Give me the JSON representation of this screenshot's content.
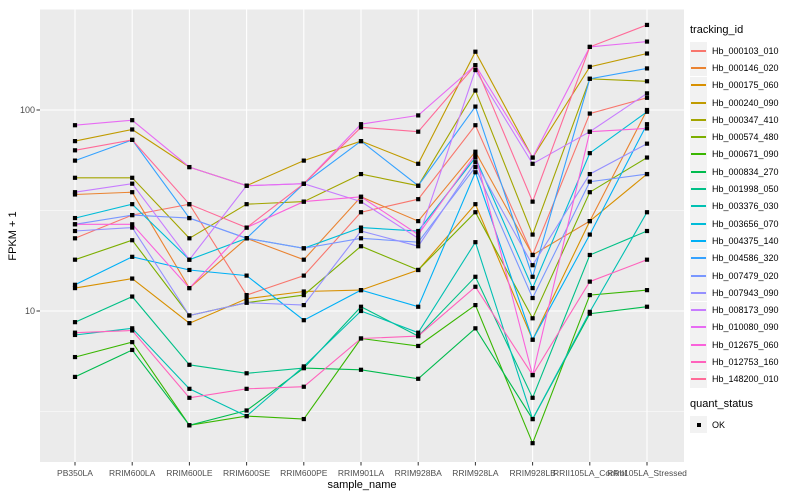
{
  "chart_data": {
    "type": "line",
    "title": "",
    "xlabel": "sample_name",
    "ylabel": "FPKM + 1",
    "y_scale": "log10",
    "y_ticks": [
      10,
      100
    ],
    "y_minor_ticks": [
      3.1623,
      31.623,
      316.23
    ],
    "ylim": [
      1.77,
      315
    ],
    "grid": true,
    "legend_position": "right",
    "legend_title": "tracking_id",
    "legend2_title": "quant_status",
    "quant_status_values": [
      "OK"
    ],
    "panel_bg": "#EBEBEB",
    "grid_color": "#FFFFFF",
    "point_color": "#000000",
    "x_categories": [
      "PB350LA",
      "RRIM600LA",
      "RRIM600LE",
      "RRIM600SE",
      "RRIM600PE",
      "RRIM901LA",
      "RRIM928BA",
      "RRIM928LA",
      "RRIM928LB",
      "RRII105LA_Control",
      "RRII105LA_Stressed"
    ],
    "series": [
      {
        "name": "Hb_000103_010",
        "color": "#F8766D",
        "values": [
          23,
          30,
          34,
          12,
          15,
          31,
          36,
          84,
          19,
          96,
          115
        ]
      },
      {
        "name": "Hb_000146_020",
        "color": "#EA8331",
        "values": [
          38,
          39,
          13,
          23,
          18,
          37,
          28,
          62,
          19,
          28,
          100
        ]
      },
      {
        "name": "Hb_000175_060",
        "color": "#D89000",
        "values": [
          13,
          14.5,
          8.7,
          11.5,
          12.5,
          12.7,
          16,
          34,
          7.2,
          28,
          48
        ]
      },
      {
        "name": "Hb_000240_090",
        "color": "#C09B00",
        "values": [
          70,
          80,
          52,
          42,
          56,
          70,
          54,
          195,
          58,
          164,
          191
        ]
      },
      {
        "name": "Hb_000347_410",
        "color": "#A3A500",
        "values": [
          46,
          46,
          23,
          34,
          35,
          48,
          42,
          125,
          24,
          143,
          139
        ]
      },
      {
        "name": "Hb_000574_480",
        "color": "#7CAE00",
        "values": [
          18,
          22.5,
          9.5,
          11,
          12,
          21,
          16,
          31,
          9.2,
          39,
          58
        ]
      },
      {
        "name": "Hb_000671_090",
        "color": "#39B600",
        "values": [
          5.9,
          7,
          2.7,
          3,
          2.9,
          7.3,
          6.7,
          10.7,
          2.2,
          12,
          12.7
        ]
      },
      {
        "name": "Hb_000834_270",
        "color": "#00BB4E",
        "values": [
          4.7,
          6.4,
          2.7,
          3.2,
          5.2,
          5.1,
          4.6,
          8.2,
          2.9,
          9.7,
          10.5
        ]
      },
      {
        "name": "Hb_001998_050",
        "color": "#00C087",
        "values": [
          8.8,
          11.8,
          5.4,
          4.9,
          5.2,
          10.5,
          7.5,
          14.8,
          3.7,
          19,
          25
        ]
      },
      {
        "name": "Hb_003376_030",
        "color": "#00C0B2",
        "values": [
          7.6,
          8.2,
          4.1,
          3,
          5.3,
          10,
          7.8,
          22,
          2.9,
          9.9,
          31
        ]
      },
      {
        "name": "Hb_003656_070",
        "color": "#00BCD8",
        "values": [
          29,
          34,
          18,
          23,
          20.5,
          26,
          25,
          58,
          13,
          61,
          98
        ]
      },
      {
        "name": "Hb_004375_140",
        "color": "#00B0F6",
        "values": [
          13.5,
          18.6,
          16,
          15,
          9,
          12.7,
          10.5,
          49,
          7.2,
          24,
          85
        ]
      },
      {
        "name": "Hb_004586_320",
        "color": "#35A2FF",
        "values": [
          56,
          71,
          29,
          23,
          43,
          70,
          42,
          104,
          14.8,
          143,
          161
        ]
      },
      {
        "name": "Hb_007479_020",
        "color": "#7997FF",
        "values": [
          27,
          30,
          29,
          23,
          20.5,
          23,
          22,
          52,
          11.6,
          44,
          48
        ]
      },
      {
        "name": "Hb_007943_090",
        "color": "#9590FF",
        "values": [
          25,
          26,
          9.5,
          11,
          10.7,
          25,
          21,
          55,
          16.9,
          48,
          68
        ]
      },
      {
        "name": "Hb_008173_090",
        "color": "#C77CFF",
        "values": [
          39,
          43,
          18,
          42,
          43,
          35,
          23,
          158,
          54,
          78,
          121
        ]
      },
      {
        "name": "Hb_010080_090",
        "color": "#E76BF3",
        "values": [
          84,
          89,
          52,
          42,
          43,
          85,
          94,
          167,
          58,
          206,
          219
        ]
      },
      {
        "name": "Hb_012675_060",
        "color": "#FA62DB",
        "values": [
          27,
          27,
          13,
          26,
          35,
          37,
          24,
          60,
          4.8,
          78,
          81
        ]
      },
      {
        "name": "Hb_012753_160",
        "color": "#FF62BC",
        "values": [
          7.8,
          8,
          3.7,
          4.1,
          4.2,
          7.3,
          7.5,
          13.2,
          4.8,
          14,
          18
        ]
      },
      {
        "name": "Hb_148200_010",
        "color": "#FF6A98",
        "values": [
          63,
          71,
          34,
          26,
          43,
          82,
          78,
          167,
          35,
          206,
          265
        ]
      }
    ]
  }
}
